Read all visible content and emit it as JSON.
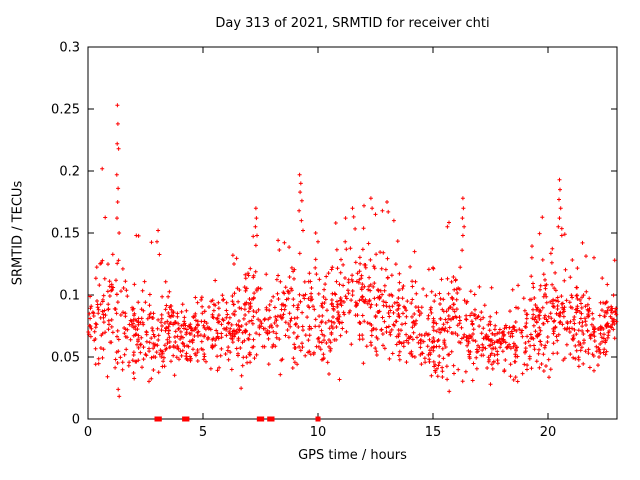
{
  "chart_data": {
    "type": "scatter",
    "title": "Day 313 of 2021, SRMTID for receiver chti",
    "xlabel": "GPS time / hours",
    "ylabel": "SRMTID / TECUs",
    "xlim": [
      0,
      23
    ],
    "ylim": [
      0,
      0.3
    ],
    "xticks": [
      0,
      5,
      10,
      15,
      20
    ],
    "xtick_labels": [
      "0",
      "5",
      "10",
      "15",
      "20"
    ],
    "yticks": [
      0,
      0.05,
      0.1,
      0.15,
      0.2,
      0.25,
      0.3
    ],
    "ytick_labels": [
      "0",
      "0.05",
      "0.1",
      "0.15",
      "0.2",
      "0.25",
      "0.3"
    ],
    "grid": false,
    "legend": "none",
    "marker": "plus",
    "marker_color": "#ff0000",
    "border_color": "#000000",
    "background": "#ffffff",
    "series_name": "SRMTID",
    "cloud": {
      "seed": 313,
      "n": 1750,
      "x_max": 23.0,
      "y_floor": 0.018,
      "hour_mean": [
        0.075,
        0.085,
        0.065,
        0.07,
        0.065,
        0.07,
        0.072,
        0.078,
        0.075,
        0.088,
        0.08,
        0.09,
        0.098,
        0.088,
        0.075,
        0.065,
        0.08,
        0.065,
        0.06,
        0.068,
        0.085,
        0.078,
        0.07,
        0.08
      ],
      "hour_sd": [
        0.018,
        0.035,
        0.02,
        0.024,
        0.014,
        0.014,
        0.02,
        0.024,
        0.02,
        0.03,
        0.024,
        0.028,
        0.028,
        0.028,
        0.02,
        0.018,
        0.028,
        0.018,
        0.014,
        0.02,
        0.028,
        0.024,
        0.018,
        0.012
      ],
      "hour_max": [
        0.125,
        0.253,
        0.148,
        0.152,
        0.1,
        0.105,
        0.132,
        0.17,
        0.135,
        0.197,
        0.155,
        0.17,
        0.18,
        0.175,
        0.135,
        0.122,
        0.178,
        0.125,
        0.105,
        0.13,
        0.193,
        0.145,
        0.13,
        0.11
      ]
    },
    "outliers": [
      [
        1.28,
        0.253
      ],
      [
        1.3,
        0.238
      ],
      [
        1.27,
        0.222
      ],
      [
        1.33,
        0.218
      ],
      [
        1.25,
        0.197
      ],
      [
        1.31,
        0.186
      ],
      [
        1.29,
        0.175
      ],
      [
        1.26,
        0.162
      ],
      [
        1.35,
        0.15
      ],
      [
        2.1,
        0.148
      ],
      [
        3.05,
        0.152
      ],
      [
        3.0,
        0.143
      ],
      [
        6.3,
        0.132
      ],
      [
        6.35,
        0.125
      ],
      [
        7.3,
        0.17
      ],
      [
        7.32,
        0.162
      ],
      [
        7.28,
        0.155
      ],
      [
        7.35,
        0.148
      ],
      [
        7.3,
        0.14
      ],
      [
        9.2,
        0.197
      ],
      [
        9.25,
        0.19
      ],
      [
        9.22,
        0.183
      ],
      [
        9.3,
        0.176
      ],
      [
        9.18,
        0.168
      ],
      [
        9.28,
        0.16
      ],
      [
        9.35,
        0.152
      ],
      [
        9.9,
        0.15
      ],
      [
        10.0,
        0.143
      ],
      [
        11.2,
        0.162
      ],
      [
        11.5,
        0.17
      ],
      [
        11.55,
        0.163
      ],
      [
        12.0,
        0.172
      ],
      [
        12.3,
        0.178
      ],
      [
        12.35,
        0.17
      ],
      [
        12.5,
        0.165
      ],
      [
        12.8,
        0.168
      ],
      [
        13.0,
        0.175
      ],
      [
        13.05,
        0.167
      ],
      [
        13.3,
        0.16
      ],
      [
        14.2,
        0.135
      ],
      [
        15.0,
        0.122
      ],
      [
        16.3,
        0.178
      ],
      [
        16.32,
        0.17
      ],
      [
        16.28,
        0.162
      ],
      [
        16.35,
        0.155
      ],
      [
        16.3,
        0.148
      ],
      [
        19.3,
        0.13
      ],
      [
        20.5,
        0.193
      ],
      [
        20.52,
        0.185
      ],
      [
        20.48,
        0.177
      ],
      [
        20.55,
        0.17
      ],
      [
        20.5,
        0.162
      ],
      [
        20.45,
        0.155
      ],
      [
        20.6,
        0.148
      ],
      [
        21.5,
        0.142
      ],
      [
        22.0,
        0.13
      ],
      [
        22.9,
        0.128
      ]
    ],
    "zero_squares_x": [
      3.0,
      3.1,
      4.2,
      4.3,
      7.45,
      7.55,
      7.9,
      8.0,
      10.0
    ]
  }
}
